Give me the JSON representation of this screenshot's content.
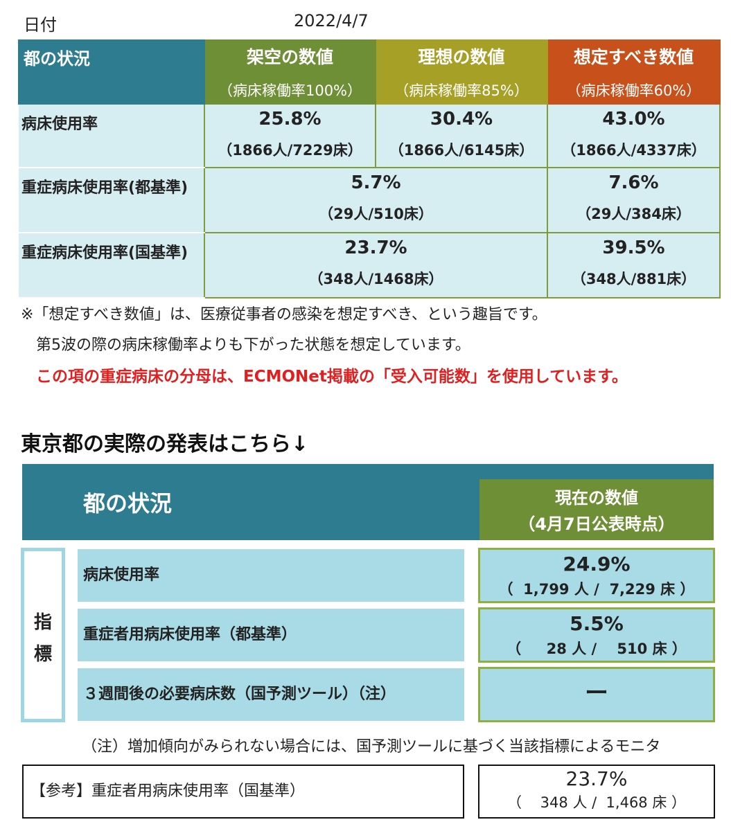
{
  "date": {
    "label": "日付",
    "value": "2022/4/7"
  },
  "table1": {
    "corner": "都の状況",
    "columns": [
      {
        "title": "架空の数値",
        "sub": "（病床稼働率100%）"
      },
      {
        "title": "理想の数値",
        "sub": "（病床稼働率85%）"
      },
      {
        "title": "想定すべき数値",
        "sub": "（病床稼働率60%）"
      }
    ],
    "rows": [
      {
        "label": "病床使用率",
        "c1": {
          "pct": "25.8%",
          "detail": "（1866人/7229床）"
        },
        "c2": {
          "pct": "30.4%",
          "detail": "（1866人/6145床）"
        },
        "c3": {
          "pct": "43.0%",
          "detail": "（1866人/4337床）"
        }
      },
      {
        "label": "重症病床使用率(都基準)",
        "c12": {
          "pct": "5.7%",
          "detail": "（29人/510床）"
        },
        "c3": {
          "pct": "7.6%",
          "detail": "（29人/384床）"
        }
      },
      {
        "label": "重症病床使用率(国基準)",
        "c12": {
          "pct": "23.7%",
          "detail": "（348人/1468床）"
        },
        "c3": {
          "pct": "39.5%",
          "detail": "（348人/881床）"
        }
      }
    ]
  },
  "notes": {
    "n1": "※「想定すべき数値」は、医療従事者の感染を想定すべき、という趣旨です。",
    "n2": "第5波の際の病床稼働率よりも下がった状態を想定しています。",
    "n3": "この項の重症病床の分母は、ECMONet掲載の「受入可能数」を使用しています。"
  },
  "section_title": "東京都の実際の発表はこちら↓",
  "official": {
    "header": "都の状況",
    "current_line1": "現在の数値",
    "current_line2": "（4月7日公表時点）",
    "shihyo_1": "指",
    "shihyo_2": "標",
    "indicators": [
      {
        "label": "病床使用率",
        "pct": "24.9%",
        "detail": "（  1,799 人 /  7,229 床 ）"
      },
      {
        "label": "重症者用病床使用率（都基準）",
        "pct": "5.5%",
        "detail": "（     28 人 /    510 床 ）"
      },
      {
        "label": "３週間後の必要病床数（国予測ツール）（注）",
        "value": "ー"
      }
    ],
    "note": "（注）増加傾向がみられない場合には、国予測ツールに基づく当該指標によるモニタ",
    "reference": {
      "label": "【参考】重症者用病床使用率（国基準）",
      "pct": "23.7%",
      "detail": "（    348 人 /  1,468 床 ）"
    }
  }
}
